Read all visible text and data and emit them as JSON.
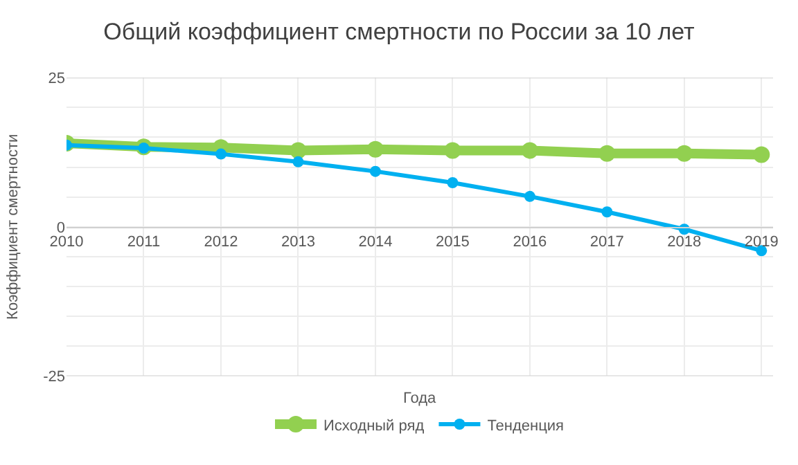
{
  "chart_data": {
    "type": "line",
    "title": "Общий коэффициент смертности по России за 10 лет",
    "xlabel": "Года",
    "ylabel": "Коэффициент смертности",
    "x": [
      2010,
      2011,
      2012,
      2013,
      2014,
      2015,
      2016,
      2017,
      2018,
      2019
    ],
    "series": [
      {
        "name": "Исходный ряд",
        "color": "#92d050",
        "values": [
          14.0,
          13.4,
          13.3,
          12.8,
          13.0,
          12.8,
          12.8,
          12.3,
          12.3,
          12.1
        ]
      },
      {
        "name": "Тенденция",
        "color": "#00b0f0",
        "values": [
          13.7,
          13.2,
          12.2,
          10.9,
          9.3,
          7.4,
          5.1,
          2.5,
          -0.4,
          -4.0
        ]
      }
    ],
    "xlim": [
      2010,
      2019.15
    ],
    "xticks": [
      2010,
      2011,
      2012,
      2013,
      2014,
      2015,
      2016,
      2017,
      2018,
      2019
    ],
    "ylim": [
      -25,
      25
    ],
    "yticks": [
      -25,
      {
        "value": -20,
        "label": null
      },
      {
        "value": -15,
        "label": null
      },
      {
        "value": -10,
        "label": null
      },
      {
        "value": -5,
        "label": null
      },
      0,
      {
        "value": 5,
        "label": null
      },
      {
        "value": 10,
        "label": null
      },
      {
        "value": 15,
        "label": null
      },
      {
        "value": 20,
        "label": null
      },
      25
    ],
    "grid": true,
    "legend": "bottom",
    "marker": "circle",
    "line_style": "solid"
  }
}
